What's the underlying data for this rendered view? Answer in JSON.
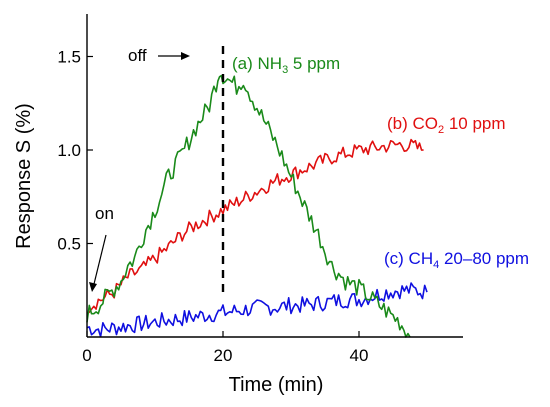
{
  "chart_data": {
    "type": "line",
    "xlabel": "Time (min)",
    "ylabel": "Response S (%)",
    "xlim": [
      0,
      55
    ],
    "ylim": [
      0,
      1.75
    ],
    "x_ticks": [
      0,
      20,
      40
    ],
    "y_ticks": [
      0.5,
      1.0,
      1.5
    ],
    "x_tick_labels": [
      "0",
      "20",
      "40"
    ],
    "y_tick_labels": [
      "0.5",
      "1.0",
      "1.5"
    ],
    "grid": false,
    "legend": "none (curves labelled inline)",
    "series": [
      {
        "name": "(a) NH3 5 ppm",
        "label_parts": {
          "prefix": "(a) NH",
          "sub": "3",
          "suffix": " 5 ppm"
        },
        "color": "#1a8a1a",
        "x": [
          0,
          2,
          4,
          5,
          6,
          7,
          8,
          10,
          12,
          14,
          16,
          18,
          19,
          19.5,
          20,
          22,
          23,
          24,
          26,
          28,
          30,
          32,
          34,
          36,
          38,
          40,
          42,
          44,
          46,
          47.5
        ],
        "y": [
          0.12,
          0.18,
          0.26,
          0.3,
          0.38,
          0.42,
          0.52,
          0.68,
          0.86,
          0.98,
          1.12,
          1.24,
          1.36,
          1.43,
          1.4,
          1.34,
          1.38,
          1.3,
          1.16,
          1.02,
          0.86,
          0.7,
          0.55,
          0.38,
          0.3,
          0.26,
          0.2,
          0.14,
          0.08,
          0.0
        ]
      },
      {
        "name": "(b) CO2 10 ppm",
        "label_parts": {
          "prefix": "(b) CO",
          "sub": "2",
          "suffix": " 10 ppm"
        },
        "color": "#e01010",
        "x": [
          0,
          2,
          4,
          5,
          6,
          8,
          10,
          12,
          14,
          16,
          18,
          20,
          22,
          24,
          26,
          28,
          30,
          32,
          34,
          36,
          38,
          40,
          42,
          44,
          46,
          48,
          49.5
        ],
        "y": [
          0.16,
          0.2,
          0.24,
          0.28,
          0.32,
          0.36,
          0.42,
          0.48,
          0.55,
          0.6,
          0.64,
          0.68,
          0.72,
          0.76,
          0.8,
          0.84,
          0.87,
          0.9,
          0.93,
          0.96,
          0.98,
          1.0,
          1.01,
          1.02,
          1.03,
          1.02,
          1.0
        ]
      },
      {
        "name": "(c) CH4 20–80 ppm",
        "label_parts": {
          "prefix": "(c) CH",
          "sub": "4",
          "suffix": " 20–80 ppm"
        },
        "color": "#1010e0",
        "x": [
          0,
          2,
          4,
          6,
          8,
          10,
          12,
          14,
          16,
          18,
          20,
          22,
          24,
          26,
          28,
          30,
          32,
          34,
          36,
          38,
          40,
          42,
          44,
          46,
          48,
          50
        ],
        "y": [
          0.05,
          0.04,
          0.05,
          0.06,
          0.07,
          0.08,
          0.09,
          0.1,
          0.11,
          0.12,
          0.13,
          0.14,
          0.15,
          0.16,
          0.16,
          0.17,
          0.17,
          0.18,
          0.19,
          0.2,
          0.2,
          0.22,
          0.24,
          0.25,
          0.25,
          0.24
        ]
      }
    ],
    "annotations": {
      "off": {
        "text": "off",
        "x": 20
      },
      "on": {
        "text": "on",
        "x": 0.5,
        "y": 0.15
      }
    }
  }
}
